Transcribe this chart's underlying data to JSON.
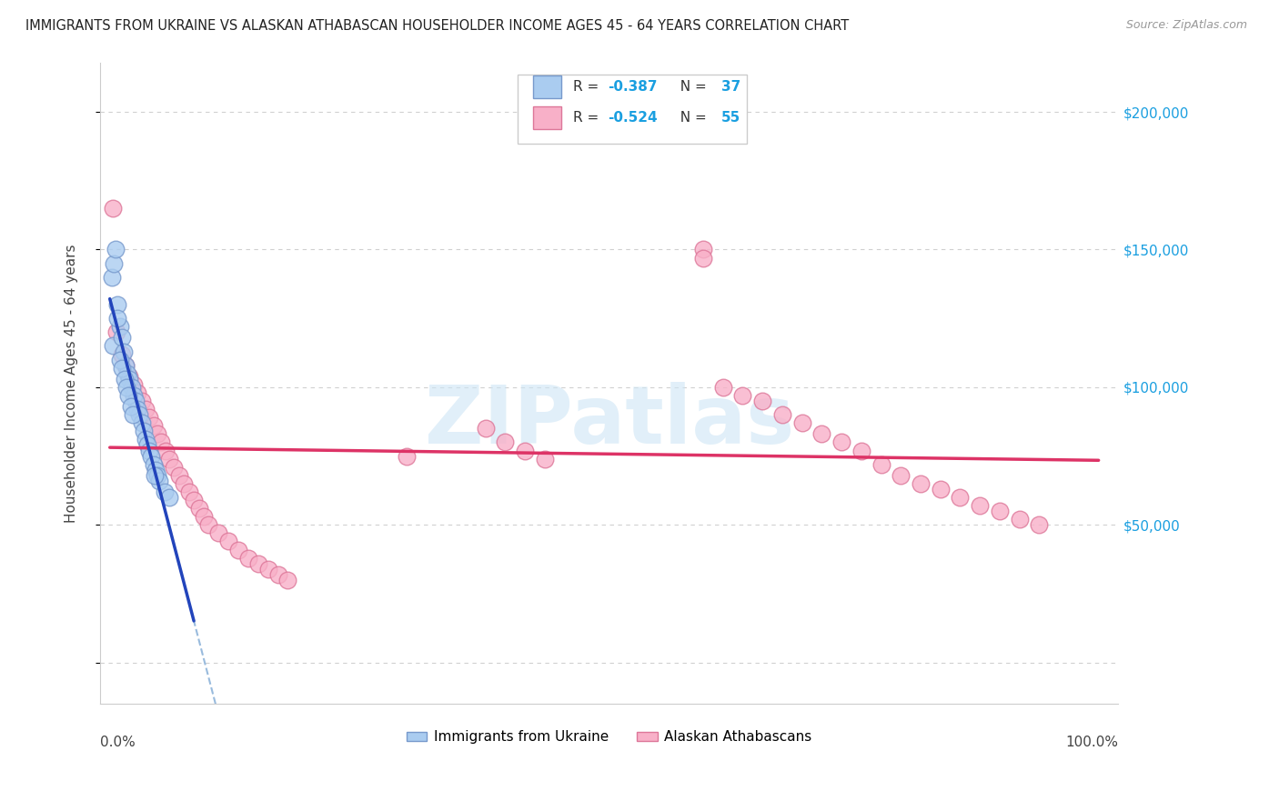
{
  "title": "IMMIGRANTS FROM UKRAINE VS ALASKAN ATHABASCAN HOUSEHOLDER INCOME AGES 45 - 64 YEARS CORRELATION CHART",
  "source": "Source: ZipAtlas.com",
  "ylabel": "Householder Income Ages 45 - 64 years",
  "ukraine_color": "#aaccf0",
  "ukraine_edge": "#7799cc",
  "athabascan_color": "#f8b0c8",
  "athabascan_edge": "#dd7799",
  "ukraine_line_color": "#2244bb",
  "athabascan_line_color": "#dd3366",
  "dashed_line_color": "#99bbdd",
  "watermark_color": "#cde5f5",
  "ytick_color": "#1a9fe0",
  "y_ticks": [
    0,
    50000,
    100000,
    150000,
    200000
  ],
  "y_tick_labels": [
    "",
    "$50,000",
    "$100,000",
    "$150,000",
    "$200,000"
  ],
  "xlim": [
    -0.01,
    1.02
  ],
  "ylim": [
    -15000,
    218000
  ],
  "figsize": [
    14.06,
    8.92
  ],
  "dpi": 100,
  "ukraine_x": [
    0.003,
    0.008,
    0.01,
    0.012,
    0.014,
    0.016,
    0.018,
    0.02,
    0.022,
    0.024,
    0.026,
    0.028,
    0.03,
    0.032,
    0.034,
    0.036,
    0.038,
    0.04,
    0.042,
    0.044,
    0.046,
    0.048,
    0.05,
    0.055,
    0.002,
    0.004,
    0.006,
    0.008,
    0.01,
    0.012,
    0.015,
    0.017,
    0.019,
    0.021,
    0.023,
    0.045,
    0.06
  ],
  "ukraine_y": [
    115000,
    130000,
    122000,
    118000,
    113000,
    108000,
    105000,
    103000,
    100000,
    97000,
    95000,
    92000,
    90000,
    87000,
    84000,
    81000,
    79000,
    77000,
    75000,
    72000,
    70000,
    68000,
    66000,
    62000,
    140000,
    145000,
    150000,
    125000,
    110000,
    107000,
    103000,
    100000,
    97000,
    93000,
    90000,
    68000,
    60000
  ],
  "athabascan_x": [
    0.003,
    0.007,
    0.012,
    0.016,
    0.02,
    0.024,
    0.028,
    0.032,
    0.036,
    0.04,
    0.044,
    0.048,
    0.052,
    0.056,
    0.06,
    0.065,
    0.07,
    0.075,
    0.08,
    0.085,
    0.09,
    0.095,
    0.1,
    0.11,
    0.12,
    0.13,
    0.14,
    0.15,
    0.16,
    0.17,
    0.18,
    0.3,
    0.38,
    0.4,
    0.42,
    0.44,
    0.6,
    0.62,
    0.64,
    0.66,
    0.68,
    0.7,
    0.72,
    0.74,
    0.76,
    0.78,
    0.8,
    0.82,
    0.84,
    0.86,
    0.88,
    0.9,
    0.92,
    0.94,
    0.6
  ],
  "athabascan_y": [
    165000,
    120000,
    112000,
    108000,
    104000,
    101000,
    98000,
    95000,
    92000,
    89000,
    86000,
    83000,
    80000,
    77000,
    74000,
    71000,
    68000,
    65000,
    62000,
    59000,
    56000,
    53000,
    50000,
    47000,
    44000,
    41000,
    38000,
    36000,
    34000,
    32000,
    30000,
    75000,
    85000,
    80000,
    77000,
    74000,
    150000,
    100000,
    97000,
    95000,
    90000,
    87000,
    83000,
    80000,
    77000,
    72000,
    68000,
    65000,
    63000,
    60000,
    57000,
    55000,
    52000,
    50000,
    147000
  ]
}
